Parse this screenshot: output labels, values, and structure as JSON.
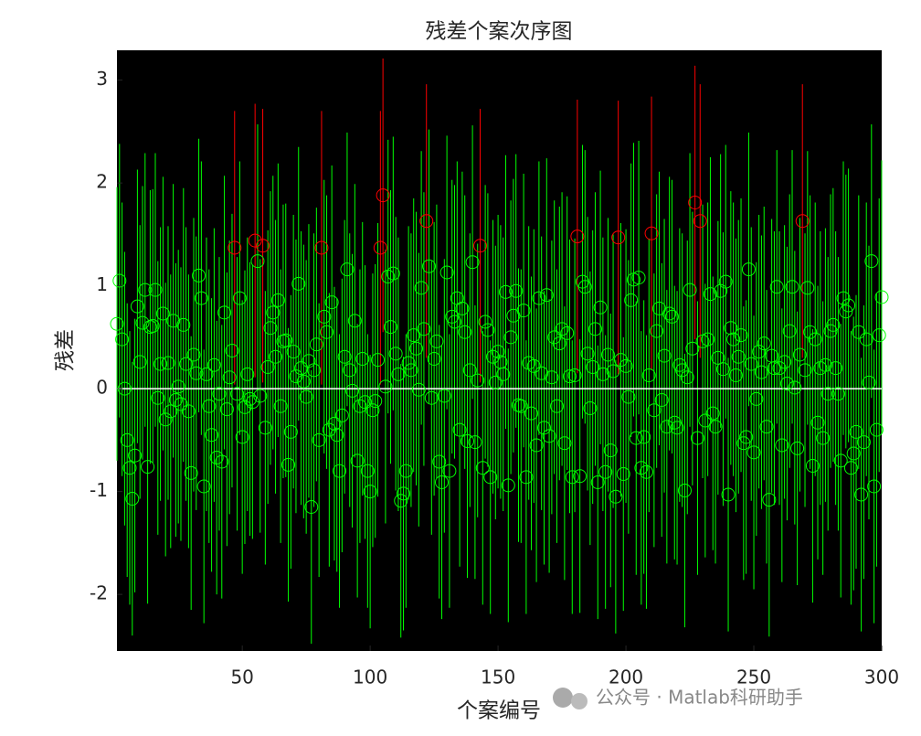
{
  "chart_data": {
    "type": "residual_caseorder",
    "title": "残差个案次序图",
    "xlabel": "个案编号",
    "ylabel": "残差",
    "watermark": "公众号 · Matlab科研助手",
    "x": [
      1,
      2,
      3,
      4,
      5,
      6,
      7,
      8,
      9,
      10,
      11,
      12,
      13,
      14,
      15,
      16,
      17,
      18,
      19,
      20,
      21,
      22,
      23,
      24,
      25,
      26,
      27,
      28,
      29,
      30,
      31,
      32,
      33,
      34,
      35,
      36,
      37,
      38,
      39,
      40,
      41,
      42,
      43,
      44,
      45,
      46,
      47,
      48,
      49,
      50,
      51,
      52,
      53,
      54,
      55,
      56,
      57,
      58,
      59,
      60,
      61,
      62,
      63,
      64,
      65,
      66,
      67,
      68,
      69,
      70,
      71,
      72,
      73,
      74,
      75,
      76,
      77,
      78,
      79,
      80,
      81,
      82,
      83,
      84,
      85,
      86,
      87,
      88,
      89,
      90,
      91,
      92,
      93,
      94,
      95,
      96,
      97,
      98,
      99,
      100,
      101,
      102,
      103,
      104,
      105,
      106,
      107,
      108,
      109,
      110,
      111,
      112,
      113,
      114,
      115,
      116,
      117,
      118,
      119,
      120,
      121,
      122,
      123,
      124,
      125,
      126,
      127,
      128,
      129,
      130,
      131,
      132,
      133,
      134,
      135,
      136,
      137,
      138,
      139,
      140,
      141,
      142,
      143,
      144,
      145,
      146,
      147,
      148,
      149,
      150,
      151,
      152,
      153,
      154,
      155,
      156,
      157,
      158,
      159,
      160,
      161,
      162,
      163,
      164,
      165,
      166,
      167,
      168,
      169,
      170,
      171,
      172,
      173,
      174,
      175,
      176,
      177,
      178,
      179,
      180,
      181,
      182,
      183,
      184,
      185,
      186,
      187,
      188,
      189,
      190,
      191,
      192,
      193,
      194,
      195,
      196,
      197,
      198,
      199,
      200,
      201,
      202,
      203,
      204,
      205,
      206,
      207,
      208,
      209,
      210,
      211,
      212,
      213,
      214,
      215,
      216,
      217,
      218,
      219,
      220,
      221,
      222,
      223,
      224,
      225,
      226,
      227,
      228,
      229,
      230,
      231,
      232,
      233,
      234,
      235,
      236,
      237,
      238,
      239,
      240,
      241,
      242,
      243,
      244,
      245,
      246,
      247,
      248,
      249,
      250,
      251,
      252,
      253,
      254,
      255,
      256,
      257,
      258,
      259,
      260,
      261,
      262,
      263,
      264,
      265,
      266,
      267,
      268,
      269,
      270,
      271,
      272,
      273,
      274,
      275,
      276,
      277,
      278,
      279,
      280,
      281,
      282,
      283,
      284,
      285,
      286,
      287,
      288,
      289,
      290,
      291,
      292,
      293,
      294,
      295,
      296,
      297,
      298,
      299,
      300
    ],
    "values": [
      0.63,
      1.05,
      0.48,
      0.0,
      -0.5,
      -0.77,
      -1.07,
      -0.65,
      0.8,
      0.26,
      0.64,
      0.96,
      -0.76,
      0.6,
      0.61,
      0.96,
      -0.09,
      0.24,
      0.73,
      -0.3,
      0.25,
      -0.22,
      0.66,
      -0.11,
      0.02,
      -0.15,
      0.62,
      0.24,
      -0.22,
      -0.82,
      0.33,
      0.15,
      1.1,
      0.88,
      -0.95,
      0.14,
      -0.17,
      -0.45,
      0.23,
      -0.67,
      -0.05,
      -0.71,
      0.74,
      -0.2,
      0.11,
      0.37,
      1.37,
      -0.05,
      0.88,
      -0.47,
      -0.18,
      0.14,
      -0.1,
      -0.13,
      1.44,
      1.24,
      -0.07,
      1.39,
      -0.38,
      0.21,
      0.59,
      0.74,
      0.31,
      0.86,
      -0.17,
      0.46,
      0.47,
      -0.74,
      -0.42,
      0.36,
      0.12,
      1.02,
      0.2,
      0.07,
      -0.08,
      0.27,
      -1.15,
      0.18,
      0.43,
      -0.5,
      1.37,
      0.7,
      0.55,
      -0.4,
      0.84,
      -0.34,
      -0.45,
      -0.8,
      -0.26,
      0.31,
      1.16,
      0.18,
      -0.02,
      0.66,
      -0.7,
      -0.17,
      0.29,
      -0.13,
      -0.8,
      -1.0,
      -0.21,
      -0.12,
      0.28,
      1.37,
      1.88,
      0.02,
      1.09,
      0.6,
      1.12,
      0.34,
      0.14,
      -1.09,
      -1.02,
      -0.8,
      0.25,
      0.18,
      0.52,
      0.39,
      -0.01,
      0.98,
      0.58,
      1.63,
      1.19,
      -0.09,
      0.29,
      0.46,
      -0.71,
      -0.91,
      -0.07,
      1.13,
      -0.8,
      0.7,
      0.65,
      0.88,
      -0.4,
      0.78,
      0.55,
      -0.51,
      0.18,
      1.23,
      -0.52,
      0.08,
      1.39,
      -0.77,
      0.65,
      0.57,
      -0.86,
      0.31,
      0.06,
      0.36,
      0.26,
      0.14,
      0.94,
      -0.94,
      0.5,
      0.71,
      0.95,
      -0.16,
      -0.17,
      0.76,
      -0.86,
      0.25,
      -0.24,
      0.22,
      -0.55,
      0.88,
      0.15,
      -0.38,
      0.91,
      -0.46,
      0.11,
      0.5,
      -0.17,
      0.44,
      0.58,
      -0.53,
      0.54,
      0.12,
      -0.86,
      0.13,
      1.48,
      -0.85,
      1.04,
      0.99,
      0.34,
      -0.19,
      0.21,
      0.58,
      -0.91,
      0.79,
      0.14,
      -0.81,
      0.33,
      -0.6,
      0.17,
      -1.05,
      1.47,
      0.28,
      -0.83,
      0.22,
      -0.08,
      0.86,
      1.06,
      -0.48,
      1.08,
      -0.77,
      -0.47,
      -0.81,
      0.13,
      1.51,
      -0.21,
      0.56,
      0.78,
      -0.11,
      0.32,
      -0.37,
      0.73,
      0.7,
      -0.33,
      -0.38,
      0.23,
      0.18,
      -0.99,
      0.11,
      0.96,
      0.39,
      1.81,
      -0.48,
      1.63,
      0.46,
      -0.31,
      0.48,
      0.92,
      -0.24,
      -0.37,
      0.3,
      0.95,
      0.19,
      1.04,
      -1.03,
      0.59,
      0.48,
      0.13,
      0.31,
      0.52,
      -0.53,
      -0.47,
      1.16,
      0.24,
      -0.62,
      -0.1,
      0.36,
      0.16,
      0.44,
      -0.37,
      -1.08,
      0.32,
      0.2,
      0.99,
      0.2,
      -0.55,
      0.26,
      0.05,
      0.56,
      0.99,
      0.01,
      -0.58,
      0.33,
      1.63,
      0.18,
      0.98,
      0.55,
      -0.75,
      0.48,
      -0.33,
      0.2,
      -0.48,
      0.23,
      -0.05,
      0.56,
      0.62,
      0.2,
      -0.05,
      -0.7,
      0.88,
      0.75,
      0.81,
      -0.77,
      -0.63,
      -0.42,
      0.55,
      -1.03,
      -0.52,
      0.48,
      0.06,
      1.24,
      -0.95,
      -0.4,
      0.52,
      0.89
    ],
    "error": 1.33,
    "color": "#00ff00",
    "outlier_color": "#ff0000",
    "background": "#000000",
    "zero_line": 0,
    "zero_line_color": "#ffffff",
    "xlim": [
      1,
      300
    ],
    "xticks": [
      50,
      100,
      150,
      200,
      250,
      300
    ],
    "ylim": [
      -2.55,
      3.29
    ],
    "yticks": [
      -2,
      -1,
      0,
      1,
      2,
      3
    ]
  }
}
